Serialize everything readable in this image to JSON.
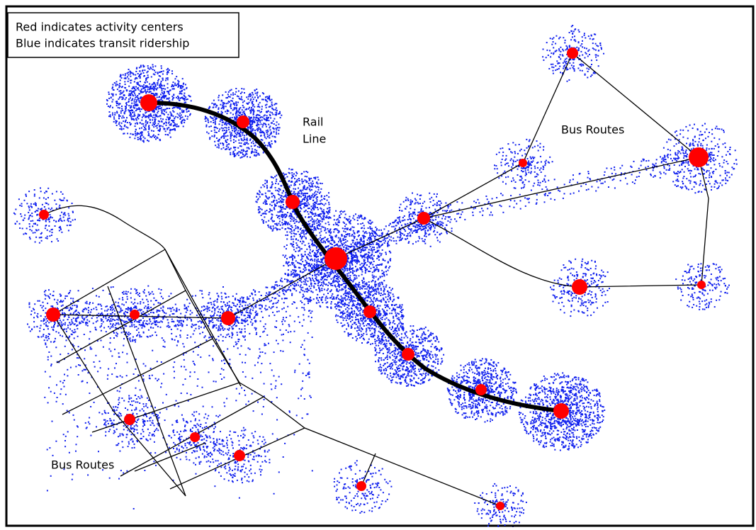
{
  "legend": {
    "lines": [
      "Red indicates activity centers",
      "Blue indicates transit ridership"
    ]
  },
  "labels": {
    "rail_line": [
      "Rail",
      "Line"
    ],
    "bus_routes_right": "Bus Routes",
    "bus_routes_left": "Bus Routes"
  }
}
